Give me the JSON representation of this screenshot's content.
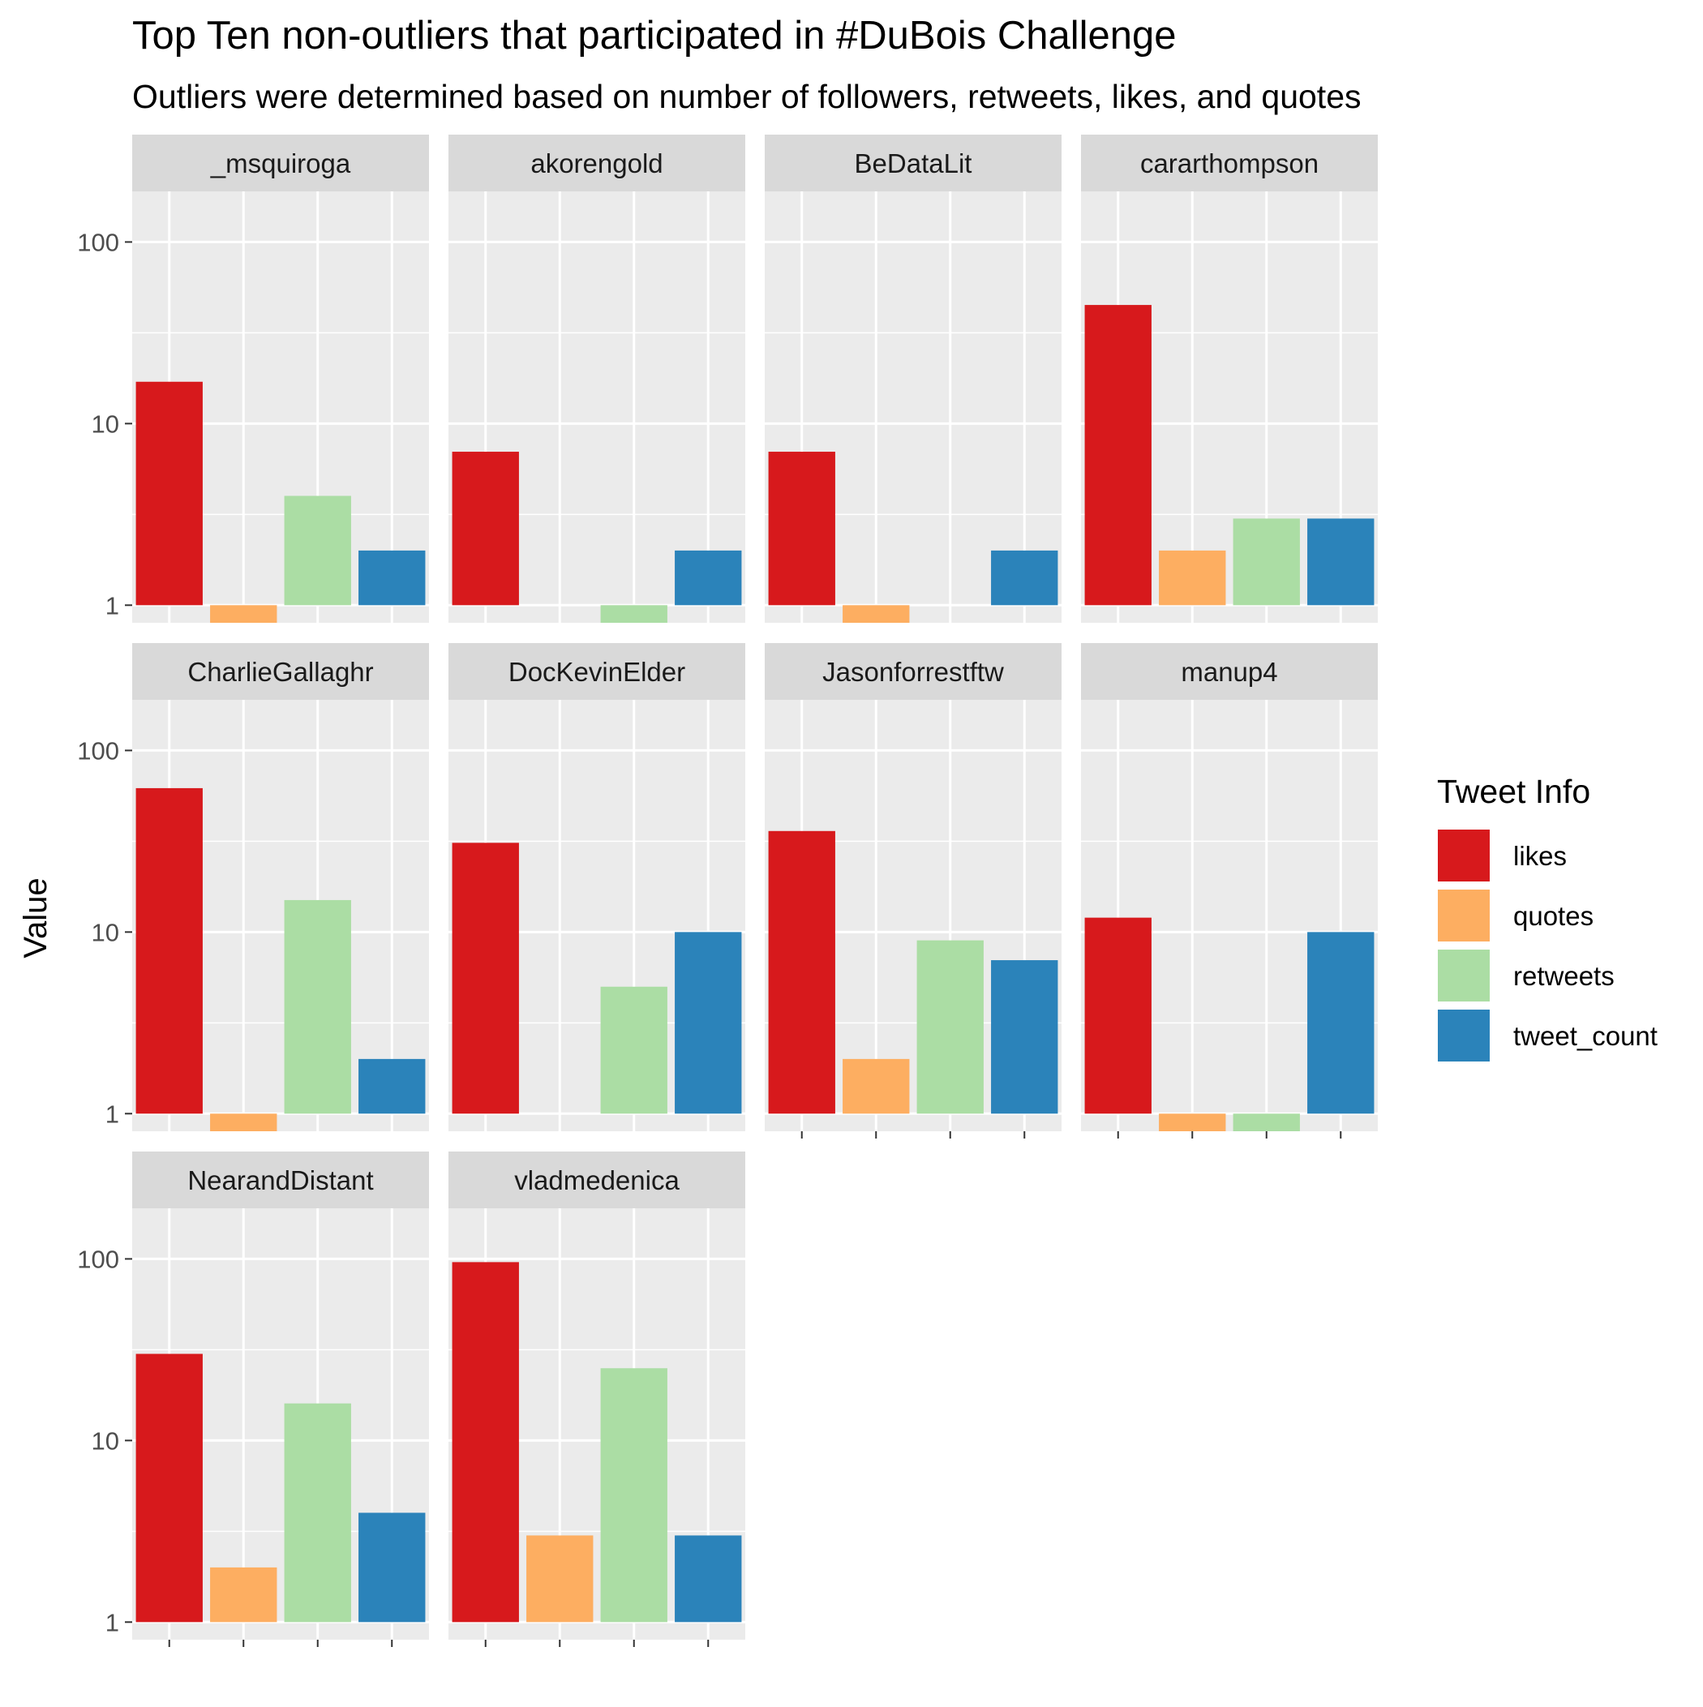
{
  "chart_data": {
    "type": "bar",
    "title": "Top Ten non-outliers that participated in #DuBois Challenge",
    "subtitle": "Outliers were determined based on number of followers, retweets, likes, and quotes",
    "ylabel": "Value",
    "yscale": "log10",
    "ylim": [
      0.8,
      190
    ],
    "yticks": [
      1,
      10,
      100
    ],
    "ytick_labels": [
      "1",
      "10",
      "100"
    ],
    "grid": true,
    "legend": {
      "title": "Tweet Info",
      "position": "right",
      "entries": [
        "likes",
        "quotes",
        "retweets",
        "tweet_count"
      ]
    },
    "colors": {
      "likes": "#d7191c",
      "quotes": "#fdae61",
      "retweets": "#abdda4",
      "tweet_count": "#2b83ba"
    },
    "categories": [
      "likes",
      "quotes",
      "retweets",
      "tweet_count"
    ],
    "facets": [
      {
        "name": "_msquiroga",
        "values": [
          17,
          1,
          4,
          2
        ]
      },
      {
        "name": "akorengold",
        "values": [
          7,
          null,
          1,
          2
        ]
      },
      {
        "name": "BeDataLit",
        "values": [
          7,
          1,
          null,
          2
        ]
      },
      {
        "name": "cararthompson",
        "values": [
          45,
          2,
          3,
          3
        ]
      },
      {
        "name": "CharlieGallaghr",
        "values": [
          62,
          1,
          15,
          2
        ]
      },
      {
        "name": "DocKevinElder",
        "values": [
          31,
          null,
          5,
          10
        ]
      },
      {
        "name": "Jasonforrestftw",
        "values": [
          36,
          2,
          9,
          7
        ]
      },
      {
        "name": "manup4",
        "values": [
          12,
          1,
          1,
          10
        ]
      },
      {
        "name": "NearandDistant",
        "values": [
          30,
          2,
          16,
          4
        ]
      },
      {
        "name": "vladmedenica",
        "values": [
          96,
          3,
          25,
          3
        ]
      }
    ]
  }
}
